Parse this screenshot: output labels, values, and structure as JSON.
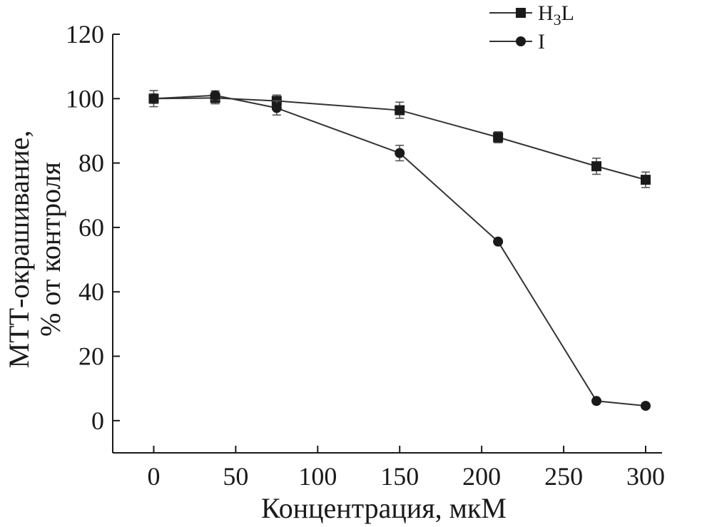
{
  "chart_data": {
    "type": "line",
    "xlabel": "Концентрация, мкМ",
    "ylabel": [
      "МТТ-окрашивание,",
      "% от контроля"
    ],
    "xlim": [
      -25,
      310
    ],
    "ylim": [
      -10,
      120
    ],
    "xticks": [
      0,
      50,
      100,
      150,
      200,
      250,
      300
    ],
    "yticks": [
      0,
      20,
      40,
      60,
      80,
      100,
      120
    ],
    "legend_position": "top-right",
    "series": [
      {
        "name_parts": [
          "H",
          "3",
          "L"
        ],
        "marker": "square",
        "x": [
          0,
          37.5,
          75,
          150,
          210,
          270,
          300
        ],
        "y": [
          100,
          100.2,
          99.3,
          96.4,
          88,
          79,
          74.8
        ],
        "err": [
          2.5,
          1.8,
          1.8,
          2.5,
          1.7,
          2.5,
          2.4
        ]
      },
      {
        "name": "I",
        "marker": "circle",
        "x": [
          0,
          37.5,
          75,
          150,
          210,
          270,
          300
        ],
        "y": [
          100,
          101,
          97.1,
          83.1,
          55.6,
          6.1,
          4.6
        ],
        "err": [
          1.5,
          1.4,
          2.2,
          2.4,
          0,
          0,
          0
        ]
      }
    ]
  }
}
